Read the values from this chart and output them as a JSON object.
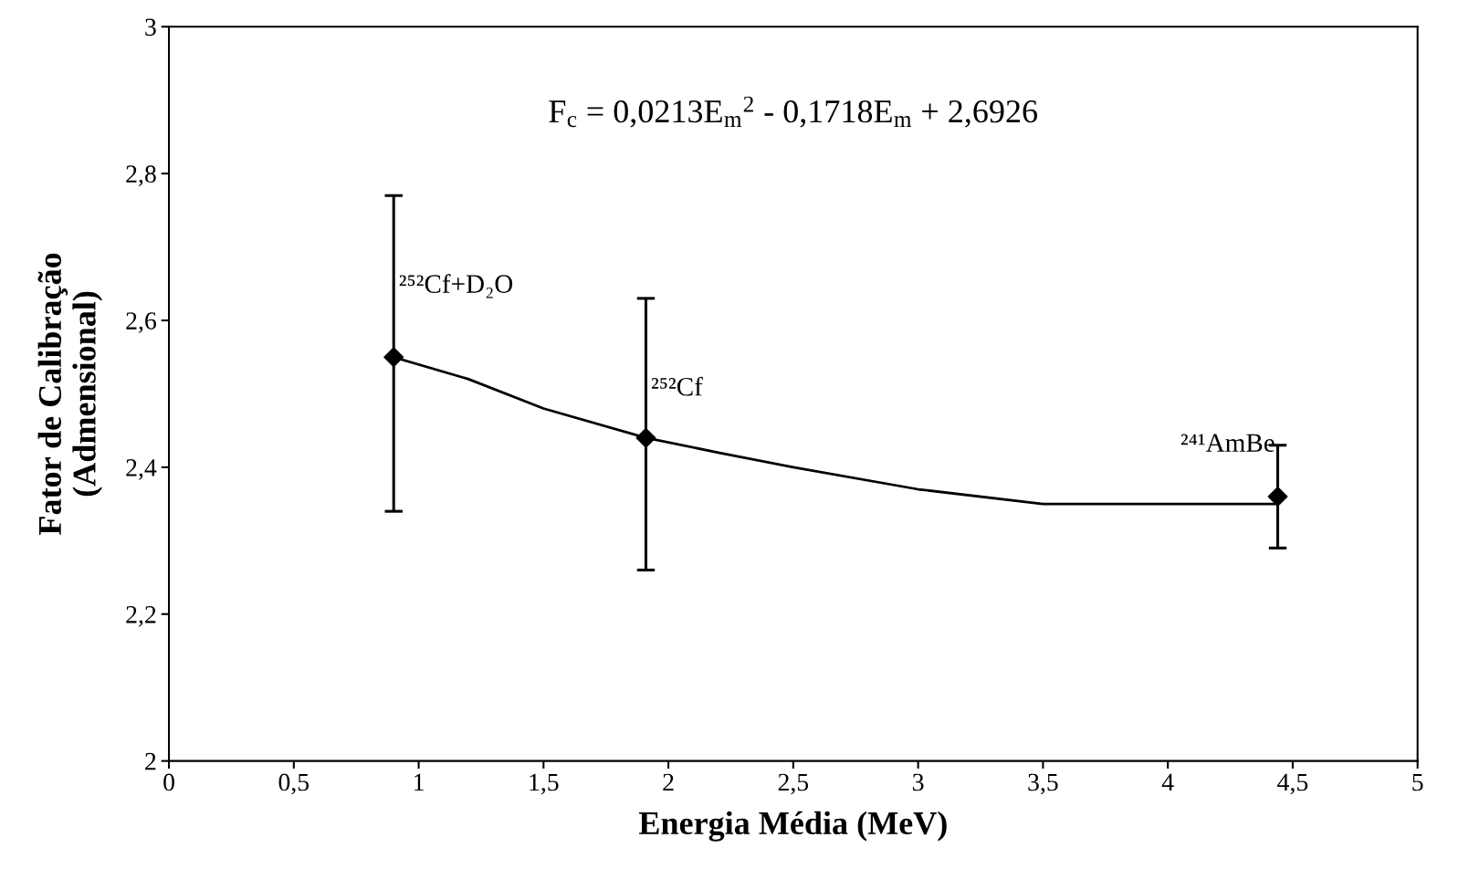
{
  "chart_data": {
    "type": "scatter",
    "xlabel": "Energia Média (MeV)",
    "ylabel": "Fator de Calibração\n(Admensional)",
    "xlim": [
      0,
      5
    ],
    "ylim": [
      2,
      3
    ],
    "xticks": [
      0,
      {
        "value": 0.5,
        "label": "0,5"
      },
      1,
      {
        "value": 1.5,
        "label": "1,5"
      },
      2,
      {
        "value": 2.5,
        "label": "2,5"
      },
      3,
      {
        "value": 3.5,
        "label": "3,5"
      },
      4,
      {
        "value": 4.5,
        "label": "4,5"
      },
      5
    ],
    "yticks": [
      2,
      {
        "value": 2.2,
        "label": "2,2"
      },
      {
        "value": 2.4,
        "label": "2,4"
      },
      {
        "value": 2.6,
        "label": "2,6"
      },
      {
        "value": 2.8,
        "label": "2,8"
      },
      3
    ],
    "grid": false,
    "legend": false,
    "series": [
      {
        "type": "line",
        "color": "#000000",
        "marker": "none",
        "line_style": "solid",
        "x": [
          0.9,
          1.2,
          1.5,
          1.91,
          2.2,
          2.5,
          3,
          3.5,
          4,
          4.44
        ],
        "values": [
          2.55,
          2.52,
          2.48,
          2.44,
          2.42,
          2.4,
          2.37,
          2.35,
          2.35,
          2.35
        ]
      },
      {
        "color": "#000000",
        "marker": "diamond",
        "x": [
          0.9,
          1.91,
          4.44
        ],
        "values": [
          2.55,
          2.44,
          2.36
        ],
        "errors": [
          [
            2.34,
            2.77
          ],
          [
            2.26,
            2.63
          ],
          [
            2.29,
            2.43
          ]
        ]
      }
    ],
    "annotations": [
      "F$_{c}$ = 0,0213E$_{m}$$^{2}$ - 0,1718E$_{m}$ + 2,6926",
      {
        "text": "²⁵²Cf+D₂O",
        "x": 0.9,
        "y": 2.63
      },
      {
        "text": "²⁵²Cf",
        "x": 1.91,
        "y": 2.49
      },
      {
        "text": "²⁴¹AmBe",
        "x": 4.44,
        "y": 2.43
      }
    ]
  }
}
